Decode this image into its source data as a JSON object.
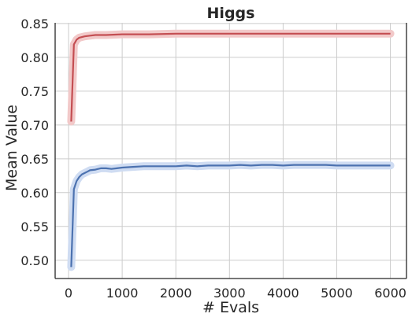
{
  "chart_data": {
    "type": "line",
    "title": "Higgs",
    "xlabel": "# Evals",
    "ylabel": "Mean Value",
    "xlim": [
      -250,
      6300
    ],
    "ylim": [
      0.473,
      0.851
    ],
    "xticks": [
      0,
      1000,
      2000,
      3000,
      4000,
      5000,
      6000
    ],
    "yticks": [
      0.5,
      0.55,
      0.6,
      0.65,
      0.7,
      0.75,
      0.8,
      0.85
    ],
    "grid": true,
    "legend": "none",
    "series": [
      {
        "color": "#c44e52",
        "band_color": "#f2c9c9",
        "x": [
          50,
          100,
          150,
          200,
          300,
          400,
          500,
          700,
          1000,
          1500,
          2000,
          3000,
          4000,
          5000,
          6000
        ],
        "y": [
          0.705,
          0.819,
          0.826,
          0.829,
          0.831,
          0.832,
          0.833,
          0.833,
          0.834,
          0.834,
          0.835,
          0.835,
          0.835,
          0.835,
          0.835
        ]
      },
      {
        "color": "#4c72b0",
        "band_color": "#cfdcf2",
        "x": [
          50,
          100,
          150,
          200,
          250,
          300,
          350,
          400,
          500,
          600,
          700,
          800,
          900,
          1000,
          1200,
          1400,
          1600,
          1800,
          2000,
          2200,
          2400,
          2600,
          2800,
          3000,
          3200,
          3400,
          3600,
          3800,
          4000,
          4200,
          4400,
          4600,
          4800,
          5000,
          5200,
          5400,
          5600,
          5800,
          6000
        ],
        "y": [
          0.49,
          0.605,
          0.617,
          0.623,
          0.627,
          0.629,
          0.631,
          0.633,
          0.634,
          0.636,
          0.636,
          0.635,
          0.636,
          0.637,
          0.638,
          0.639,
          0.639,
          0.639,
          0.639,
          0.64,
          0.639,
          0.64,
          0.64,
          0.64,
          0.641,
          0.64,
          0.641,
          0.641,
          0.64,
          0.641,
          0.641,
          0.641,
          0.641,
          0.64,
          0.64,
          0.64,
          0.64,
          0.64,
          0.64
        ]
      }
    ]
  }
}
